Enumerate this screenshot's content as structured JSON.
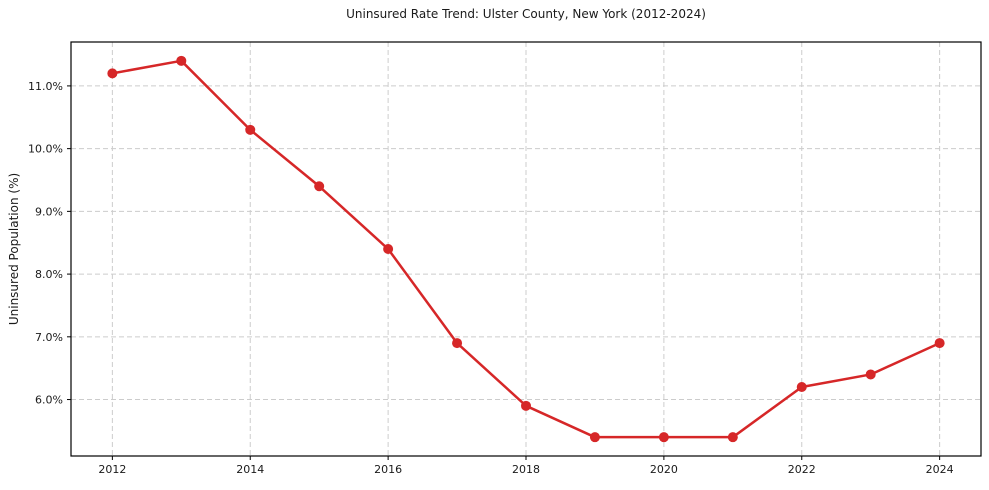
{
  "chart_data": {
    "type": "line",
    "title": "Uninsured Rate Trend: Ulster County, New York (2012-2024)",
    "xlabel": "",
    "ylabel": "Uninsured Population (%)",
    "x": [
      2012,
      2013,
      2014,
      2015,
      2016,
      2017,
      2018,
      2019,
      2020,
      2021,
      2022,
      2023,
      2024
    ],
    "values": [
      11.2,
      11.4,
      10.3,
      9.4,
      8.4,
      6.9,
      5.9,
      5.4,
      5.4,
      5.4,
      6.2,
      6.4,
      6.9
    ],
    "x_ticks": [
      2012,
      2014,
      2016,
      2018,
      2020,
      2022,
      2024
    ],
    "x_tick_labels": [
      "2012",
      "2014",
      "2016",
      "2018",
      "2020",
      "2022",
      "2024"
    ],
    "y_ticks": [
      6,
      7,
      8,
      9,
      10,
      11
    ],
    "y_tick_labels": [
      "6.0%",
      "7.0%",
      "8.0%",
      "9.0%",
      "10.0%",
      "11.0%"
    ],
    "xlim": [
      2011.4,
      2024.6
    ],
    "ylim": [
      5.1,
      11.7
    ],
    "grid": true,
    "legend": "none",
    "line_color": "#d62728",
    "grid_color": "#cccccc",
    "axis_color": "#000000",
    "text_color": "#1a1a1a",
    "background_color": "#ffffff",
    "line_width": 2.5,
    "marker": "circle",
    "marker_radius": 5
  }
}
